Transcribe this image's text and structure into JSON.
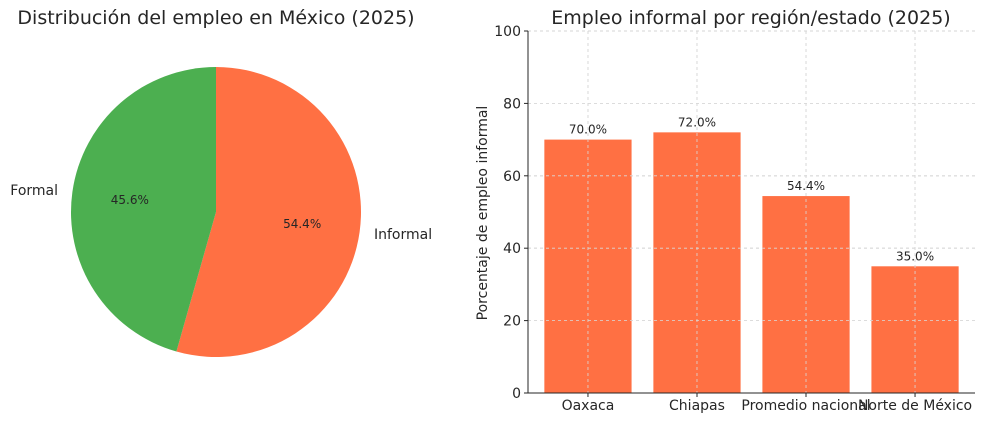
{
  "chart_data": [
    {
      "type": "pie",
      "title": "Distribución del empleo en México (2025)",
      "labels": [
        "Informal",
        "Formal"
      ],
      "values": [
        54.4,
        45.6
      ],
      "value_labels": [
        "54.4%",
        "45.6%"
      ],
      "colors": [
        "#FF7043",
        "#4CAF50"
      ],
      "start_angle": 90,
      "direction": "clockwise"
    },
    {
      "type": "bar",
      "title": "Empleo informal por región/estado (2025)",
      "categories": [
        "Oaxaca",
        "Chiapas",
        "Promedio nacional",
        "Norte de México"
      ],
      "values": [
        70.0,
        72.0,
        54.4,
        35.0
      ],
      "value_labels": [
        "70.0%",
        "72.0%",
        "54.4%",
        "35.0%"
      ],
      "xlabel": "",
      "ylabel": "Porcentaje de empleo informal",
      "ylim": [
        0,
        100
      ],
      "yticks": [
        "0",
        "20",
        "40",
        "60",
        "80",
        "100"
      ],
      "grid": true,
      "color": "#FF7043"
    }
  ]
}
